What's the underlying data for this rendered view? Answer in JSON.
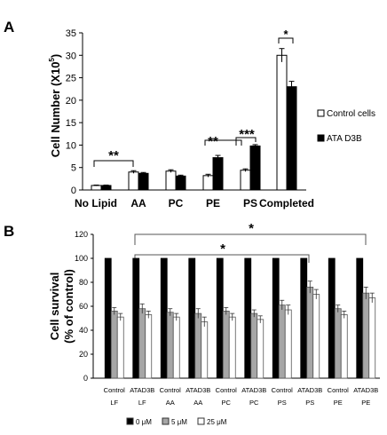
{
  "panel_a": {
    "label": "A",
    "ylabel": "Cell Number (X10",
    "ylabel_sup": "5",
    "ylabel_close": ")",
    "legend": [
      {
        "name": "Control cells",
        "color": "#ffffff"
      },
      {
        "name": "ATA D3B",
        "color": "#000000"
      }
    ],
    "significance": [
      {
        "text": "**",
        "between": [
          "No Lipid",
          "AA"
        ]
      },
      {
        "text": "**",
        "group": "PE"
      },
      {
        "text": "***",
        "group": "PS"
      },
      {
        "text": "*",
        "group": "Completed"
      }
    ]
  },
  "panel_b": {
    "label": "B",
    "ylabel_line1": "Cell survival",
    "ylabel_line2": "(% of control)",
    "legend": [
      {
        "name": "0 μM",
        "color": "#000000"
      },
      {
        "name": "5 μM",
        "color": "#a6a6a6"
      },
      {
        "name": "25 μM",
        "color": "#ffffff"
      }
    ],
    "significance": [
      {
        "text": "*",
        "between": [
          "ATAD3B LF",
          "ATAD3B PE"
        ]
      },
      {
        "text": "*",
        "between": [
          "ATAD3B LF",
          "ATAD3B PS"
        ]
      }
    ]
  },
  "chart_data": [
    {
      "type": "bar",
      "panel": "A",
      "categories": [
        "No Lipid",
        "AA",
        "PC",
        "PE",
        "PS",
        "Completed"
      ],
      "series": [
        {
          "name": "Control cells",
          "values": [
            1.0,
            4.0,
            4.2,
            3.2,
            4.4,
            30.0
          ],
          "errors": [
            0.1,
            0.3,
            0.3,
            0.3,
            0.3,
            1.5
          ]
        },
        {
          "name": "ATA D3B",
          "values": [
            1.0,
            3.7,
            3.1,
            7.2,
            9.8,
            23.0
          ],
          "errors": [
            0.1,
            0.2,
            0.2,
            0.5,
            0.3,
            1.2
          ]
        }
      ],
      "ylim": [
        0,
        35
      ],
      "yticks": [
        0,
        5,
        10,
        15,
        20,
        25,
        30,
        35
      ],
      "xlabel": "",
      "ylabel": "Cell Number (X10^5)",
      "legend_position": "right"
    },
    {
      "type": "bar",
      "panel": "B",
      "categories": [
        [
          "Control",
          "LF"
        ],
        [
          "ATAD3B",
          "LF"
        ],
        [
          "Control",
          "AA"
        ],
        [
          "ATAD3B",
          "AA"
        ],
        [
          "Control",
          "PC"
        ],
        [
          "ATAD3B",
          "PC"
        ],
        [
          "Control",
          "PS"
        ],
        [
          "ATAD3B",
          "PS"
        ],
        [
          "Control",
          "PE"
        ],
        [
          "ATAD3B",
          "PE"
        ]
      ],
      "series": [
        {
          "name": "0 μM",
          "values": [
            100,
            100,
            100,
            100,
            100,
            100,
            100,
            100,
            100,
            100
          ],
          "errors": [
            0,
            0,
            0,
            0,
            0,
            0,
            0,
            0,
            0,
            0
          ]
        },
        {
          "name": "5 μM",
          "values": [
            56,
            58,
            55,
            54,
            56,
            54,
            61,
            76,
            58,
            71
          ],
          "errors": [
            3,
            4,
            3,
            4,
            3,
            3,
            4,
            5,
            3,
            5
          ]
        },
        {
          "name": "25 μM",
          "values": [
            51,
            53,
            51,
            47,
            51,
            49,
            57,
            70,
            53,
            67
          ],
          "errors": [
            3,
            3,
            3,
            4,
            3,
            3,
            4,
            4,
            3,
            4
          ]
        }
      ],
      "ylim": [
        0,
        120
      ],
      "yticks": [
        0,
        20,
        40,
        60,
        80,
        100,
        120
      ],
      "xlabel": "",
      "ylabel": "Cell survival (% of control)",
      "legend_position": "bottom"
    }
  ]
}
